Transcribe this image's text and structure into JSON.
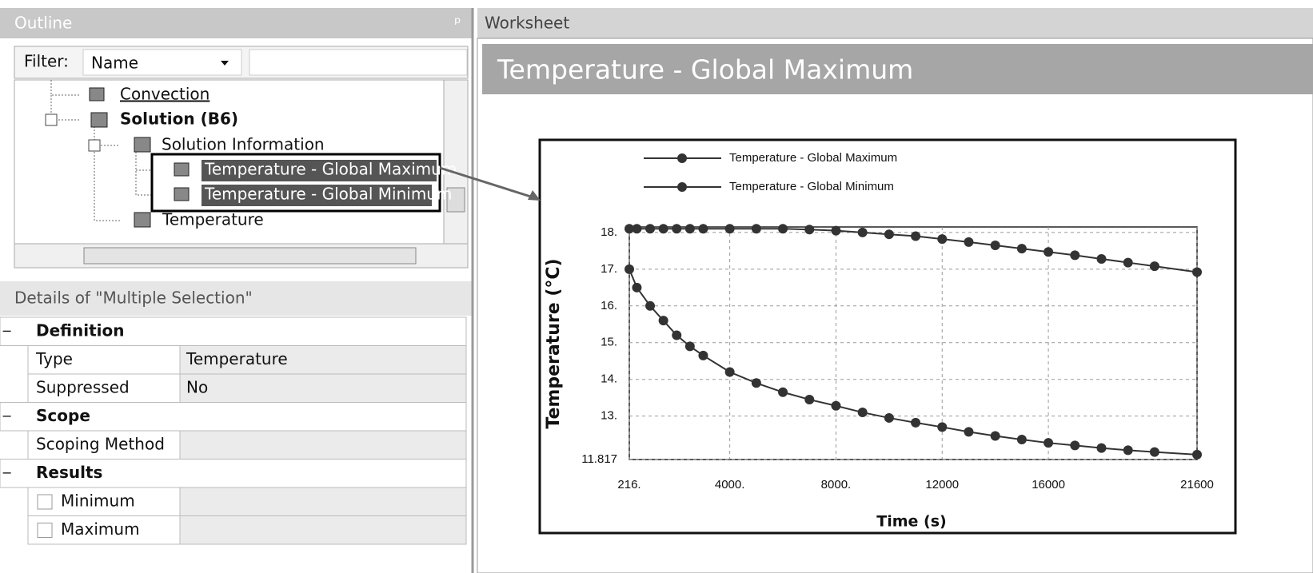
{
  "outline": {
    "title": "Outline",
    "filter_label": "Filter:",
    "filter_value": "Name",
    "tree": [
      "Convection",
      "Solution (B6)",
      "Solution Information",
      "Temperature - Global Maximum",
      "Temperature - Global Minimum",
      "Temperature"
    ]
  },
  "details": {
    "title": "Details of \"Multiple Selection\"",
    "groups": [
      {
        "name": "Definition",
        "rows": [
          {
            "label": "Type",
            "value": "Temperature"
          },
          {
            "label": "Suppressed",
            "value": "No"
          }
        ]
      },
      {
        "name": "Scope",
        "rows": [
          {
            "label": "Scoping Method"
          }
        ]
      },
      {
        "name": "Results",
        "rows": [
          {
            "label": "Minimum"
          },
          {
            "label": "Maximum"
          }
        ]
      }
    ]
  },
  "worksheet": {
    "title": "Worksheet",
    "header": "Temperature - Global Maximum"
  },
  "chart_data": {
    "type": "line",
    "x_label": "Time (s)",
    "y_label": "Temperature (°C)",
    "x": [
      216,
      500,
      1000,
      1500,
      2000,
      2500,
      3000,
      4000,
      5000,
      6000,
      7000,
      8000,
      9000,
      10000,
      11000,
      12000,
      13000,
      14000,
      15000,
      16000,
      17000,
      18000,
      19000,
      20000,
      21600
    ],
    "series": [
      {
        "name": "Temperature - Global Maximum",
        "color": "#333333",
        "values": [
          18.1,
          18.1,
          18.1,
          18.1,
          18.1,
          18.1,
          18.1,
          18.1,
          18.1,
          18.1,
          18.08,
          18.05,
          18.0,
          17.95,
          17.9,
          17.82,
          17.74,
          17.65,
          17.56,
          17.47,
          17.38,
          17.28,
          17.18,
          17.08,
          16.92
        ]
      },
      {
        "name": "Temperature - Global Minimum",
        "color": "#333333",
        "values": [
          17.0,
          16.5,
          16.0,
          15.6,
          15.2,
          14.9,
          14.65,
          14.2,
          13.9,
          13.65,
          13.45,
          13.28,
          13.1,
          12.95,
          12.82,
          12.7,
          12.57,
          12.46,
          12.36,
          12.27,
          12.2,
          12.13,
          12.07,
          12.02,
          11.95
        ]
      }
    ],
    "xlim": [
      216,
      21600
    ],
    "xticks": [
      {
        "value": 216,
        "label": "216."
      },
      {
        "value": 4000,
        "label": "4000."
      },
      {
        "value": 8000,
        "label": "8000."
      },
      12000,
      16000,
      21600
    ],
    "ylim": [
      11.817,
      18.15
    ],
    "yticks": [
      11.817,
      {
        "value": 13,
        "label": "13."
      },
      {
        "value": 14,
        "label": "14."
      },
      {
        "value": 15,
        "label": "15."
      },
      {
        "value": 16,
        "label": "16."
      },
      {
        "value": 17,
        "label": "17."
      },
      {
        "value": 18,
        "label": "18."
      }
    ],
    "grid": true
  }
}
